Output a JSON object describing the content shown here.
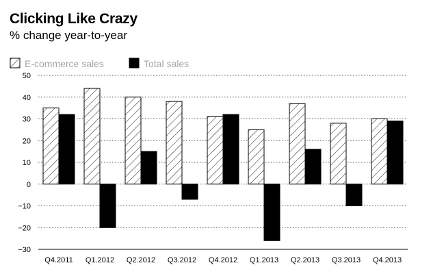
{
  "title": "Clicking Like Crazy",
  "subtitle": "% change year-to-year",
  "chart_data": {
    "type": "bar",
    "title": "Clicking Like Crazy",
    "subtitle": "% change year-to-year",
    "xlabel": "",
    "ylabel": "",
    "categories": [
      "Q4.2011",
      "Q1.2012",
      "Q2.2012",
      "Q3.2012",
      "Q4.2012",
      "Q1.2013",
      "Q2.2013",
      "Q3.2013",
      "Q4.2013"
    ],
    "series": [
      {
        "name": "E-commerce sales",
        "pattern": "hatched",
        "values": [
          35,
          44,
          40,
          38,
          31,
          25,
          37,
          28,
          30
        ]
      },
      {
        "name": "Total sales",
        "color": "#000000",
        "values": [
          32,
          -20,
          15,
          -7,
          32,
          -26,
          16,
          -10,
          29
        ]
      }
    ],
    "ylim": [
      -30,
      50
    ],
    "yticks": [
      -30,
      -20,
      -10,
      0,
      10,
      20,
      30,
      40,
      50
    ],
    "grid": "dotted horizontal",
    "legend_position": "top-left"
  }
}
